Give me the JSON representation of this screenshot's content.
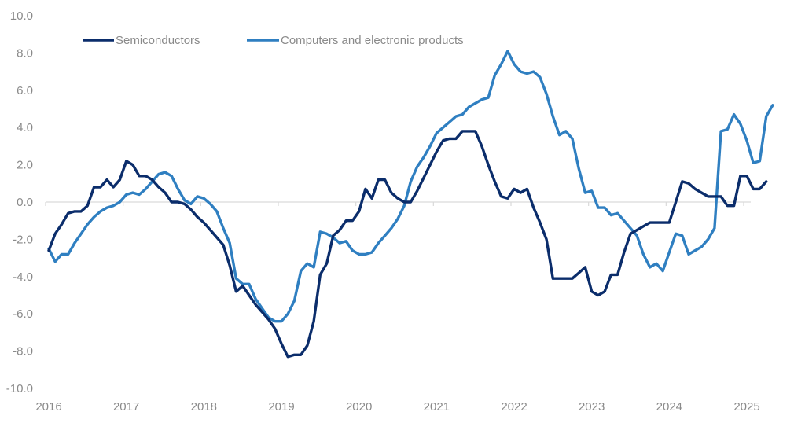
{
  "chart_data": {
    "type": "line",
    "title": "",
    "xlabel": "",
    "ylabel": "",
    "ylim": [
      -10.0,
      10.0
    ],
    "yticks": [
      "10.0",
      "8.0",
      "6.0",
      "4.0",
      "2.0",
      "0.0",
      "-2.0",
      "-4.0",
      "-6.0",
      "-8.0",
      "-10.0"
    ],
    "ytick_values": [
      10,
      8,
      6,
      4,
      2,
      0,
      -2,
      -4,
      -6,
      -8,
      -10
    ],
    "xlim": [
      2016.0,
      2025.0
    ],
    "xticks": [
      "2016",
      "2017",
      "2018",
      "2019",
      "2020",
      "2021",
      "2022",
      "2023",
      "2024",
      "2025"
    ],
    "xtick_values": [
      2016,
      2017,
      2018,
      2019,
      2020,
      2021,
      2022,
      2023,
      2024,
      2025
    ],
    "grid": false,
    "zero_line": true,
    "legend_position": "top-left",
    "x_frequency": "monthly",
    "x_start": 2016.0,
    "series": [
      {
        "name": "Semiconductors",
        "color": "#0b2d6b",
        "values": [
          -2.6,
          -1.7,
          -1.2,
          -0.6,
          -0.5,
          -0.5,
          -0.2,
          0.8,
          0.8,
          1.2,
          0.8,
          1.2,
          2.2,
          2.0,
          1.4,
          1.4,
          1.2,
          0.8,
          0.5,
          0.0,
          0.0,
          -0.1,
          -0.4,
          -0.8,
          -1.1,
          -1.5,
          -1.9,
          -2.3,
          -3.4,
          -4.8,
          -4.5,
          -5.0,
          -5.5,
          -5.9,
          -6.3,
          -6.8,
          -7.6,
          -8.3,
          -8.2,
          -8.2,
          -7.7,
          -6.4,
          -3.9,
          -3.3,
          -1.8,
          -1.5,
          -1.0,
          -1.0,
          -0.5,
          0.7,
          0.2,
          1.2,
          1.2,
          0.5,
          0.2,
          0.0,
          0.0,
          0.6,
          1.3,
          2.0,
          2.7,
          3.3,
          3.4,
          3.4,
          3.8,
          3.8,
          3.8,
          3.0,
          2.0,
          1.1,
          0.3,
          0.2,
          0.7,
          0.5,
          0.7,
          -0.3,
          -1.1,
          -2.0,
          -4.1,
          -4.1,
          -4.1,
          -4.1,
          -3.8,
          -3.5,
          -4.8,
          -5.0,
          -4.8,
          -3.9,
          -3.9,
          -2.7,
          -1.7,
          -1.5,
          -1.3,
          -1.1,
          -1.1,
          -1.1,
          -1.1,
          0.0,
          1.1,
          1.0,
          0.7,
          0.5,
          0.3,
          0.3,
          0.3,
          -0.2,
          -0.2,
          1.4,
          1.4,
          0.7,
          0.7,
          1.1
        ]
      },
      {
        "name": "Computers and electronic products",
        "color": "#2f7fc1",
        "values": [
          -2.5,
          -3.2,
          -2.8,
          -2.8,
          -2.2,
          -1.7,
          -1.2,
          -0.8,
          -0.5,
          -0.3,
          -0.2,
          0.0,
          0.4,
          0.5,
          0.4,
          0.7,
          1.1,
          1.5,
          1.6,
          1.4,
          0.7,
          0.1,
          -0.1,
          0.3,
          0.2,
          -0.1,
          -0.5,
          -1.4,
          -2.2,
          -4.1,
          -4.4,
          -4.4,
          -5.2,
          -5.7,
          -6.2,
          -6.4,
          -6.4,
          -6.0,
          -5.3,
          -3.7,
          -3.3,
          -3.5,
          -1.6,
          -1.7,
          -1.9,
          -2.2,
          -2.1,
          -2.6,
          -2.8,
          -2.8,
          -2.7,
          -2.2,
          -1.8,
          -1.4,
          -0.9,
          -0.2,
          1.1,
          1.9,
          2.4,
          3.0,
          3.7,
          4.0,
          4.3,
          4.6,
          4.7,
          5.1,
          5.3,
          5.5,
          5.6,
          6.8,
          7.4,
          8.1,
          7.4,
          7.0,
          6.9,
          7.0,
          6.7,
          5.8,
          4.6,
          3.6,
          3.8,
          3.4,
          1.8,
          0.5,
          0.6,
          -0.3,
          -0.3,
          -0.7,
          -0.6,
          -1.0,
          -1.4,
          -1.8,
          -2.8,
          -3.5,
          -3.3,
          -3.7,
          -2.7,
          -1.7,
          -1.8,
          -2.8,
          -2.6,
          -2.4,
          -2.0,
          -1.4,
          3.8,
          3.9,
          4.7,
          4.2,
          3.3,
          2.1,
          2.2,
          4.6,
          5.2
        ]
      }
    ]
  },
  "legend": {
    "items": [
      {
        "label": "Semiconductors",
        "color": "#0b2d6b"
      },
      {
        "label": "Computers and electronic products",
        "color": "#2f7fc1"
      }
    ]
  }
}
